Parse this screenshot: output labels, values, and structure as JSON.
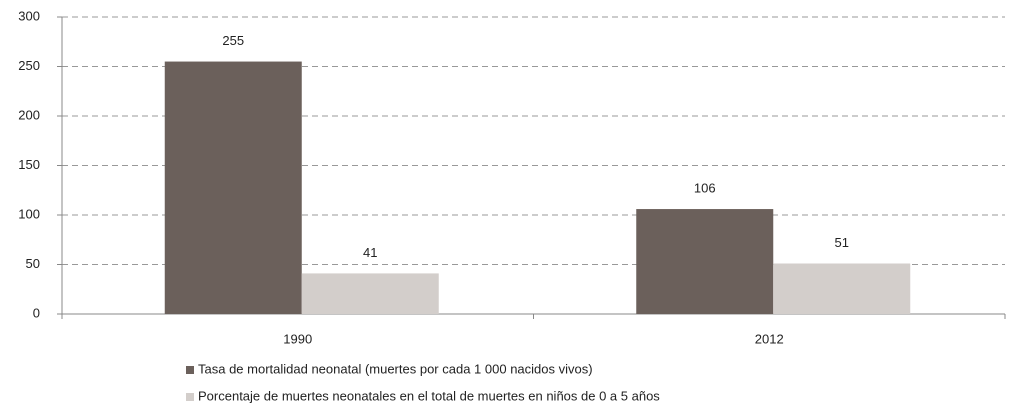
{
  "chart_data": {
    "type": "bar",
    "categories": [
      "1990",
      "2012"
    ],
    "series": [
      {
        "name": "Tasa de mortalidad neonatal (muertes por cada 1 000 nacidos vivos)",
        "color": "#6b605b",
        "values": [
          255,
          106
        ]
      },
      {
        "name": "Porcentaje de muertes neonatales en el total de muertes en niños de 0 a 5 años",
        "color": "#d3cecb",
        "values": [
          41,
          51
        ]
      }
    ],
    "ylim": [
      0,
      300
    ],
    "yticks": [
      0,
      50,
      100,
      150,
      200,
      250,
      300
    ],
    "grid": true,
    "legend": "bottom"
  }
}
